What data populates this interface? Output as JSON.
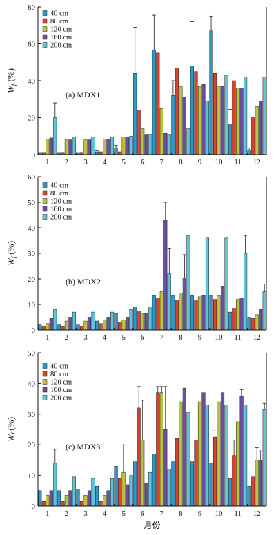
{
  "chart_data": [
    {
      "type": "bar",
      "label": "(a) MDX1",
      "ylabel": "W_f (%)",
      "ylim": [
        0,
        80
      ],
      "yticks": [
        0,
        20,
        40,
        60,
        80
      ],
      "categories": [
        "1",
        "2",
        "3",
        "4",
        "5",
        "6",
        "7",
        "8",
        "9",
        "10",
        "11",
        "12"
      ],
      "series": [
        {
          "name": "40 cm",
          "color": "#2f97c9",
          "values": [
            0.8,
            0.8,
            0.8,
            1.5,
            3.5,
            44,
            56.5,
            32,
            48,
            67,
            16.5,
            2.5
          ],
          "errors": [
            0.3,
            0.3,
            0.3,
            0.5,
            1.5,
            25,
            19,
            8,
            24,
            8,
            8,
            1
          ]
        },
        {
          "name": "80 cm",
          "color": "#d9432e",
          "values": [
            1.2,
            1.2,
            1.2,
            1.5,
            1.5,
            24,
            55,
            47,
            45,
            44,
            40,
            20
          ]
        },
        {
          "name": "120 cm",
          "color": "#b9c43c",
          "values": [
            8.5,
            8,
            8,
            8.5,
            9.5,
            14,
            25,
            37,
            37,
            37,
            36,
            26
          ]
        },
        {
          "name": "160 cm",
          "color": "#6e4c9e",
          "values": [
            9,
            8,
            8,
            8.5,
            9.5,
            11,
            11.5,
            31,
            38,
            37,
            36,
            29
          ]
        },
        {
          "name": "200 cm",
          "color": "#5fc3d9",
          "values": [
            20,
            9.5,
            9.5,
            9.5,
            10,
            11,
            11,
            14,
            29,
            43,
            42,
            42
          ],
          "errors": [
            8,
            0,
            0,
            0,
            0,
            0,
            0,
            0,
            0,
            0,
            0,
            0
          ]
        }
      ],
      "legend": "top-left"
    },
    {
      "type": "bar",
      "label": "(b) MDX2",
      "ylabel": "W_f (%)",
      "ylim": [
        0,
        60
      ],
      "yticks": [
        0,
        10,
        20,
        30,
        40,
        50,
        60
      ],
      "categories": [
        "1",
        "2",
        "3",
        "4",
        "5",
        "6",
        "7",
        "8",
        "9",
        "10",
        "11",
        "12"
      ],
      "series": [
        {
          "name": "40 cm",
          "color": "#2f97c9",
          "values": [
            2,
            2,
            2,
            3.5,
            6.5,
            9,
            13.5,
            13.5,
            13.5,
            13.5,
            7,
            5
          ]
        },
        {
          "name": "80 cm",
          "color": "#d9432e",
          "values": [
            1.5,
            1.5,
            1.5,
            2.5,
            3,
            7.5,
            12.5,
            11.5,
            11.5,
            12,
            8.5,
            4.5
          ]
        },
        {
          "name": "120 cm",
          "color": "#b9c43c",
          "values": [
            2.5,
            3.5,
            3.5,
            4,
            4,
            6.5,
            15,
            14.5,
            13,
            13.5,
            12,
            6
          ]
        },
        {
          "name": "160 cm",
          "color": "#6e4c9e",
          "values": [
            4.5,
            5,
            5,
            5,
            5,
            6.5,
            43,
            20.5,
            13.5,
            17,
            12.5,
            8
          ],
          "errors": [
            0,
            0,
            0,
            0,
            0,
            0,
            7,
            9,
            0,
            0,
            0,
            0
          ]
        },
        {
          "name": "200 cm",
          "color": "#5fc3d9",
          "values": [
            8,
            7,
            7,
            7,
            8,
            9,
            22,
            37,
            36,
            36,
            30,
            15
          ],
          "errors": [
            0,
            0,
            0,
            0,
            0,
            0,
            10,
            0,
            0,
            0,
            7,
            3
          ]
        }
      ],
      "legend": "top-left"
    },
    {
      "type": "bar",
      "label": "(c) MDX3",
      "ylabel": "W_f (%)",
      "xlabel": "月份",
      "ylim": [
        0,
        50
      ],
      "yticks": [
        0,
        10,
        20,
        30,
        40,
        50
      ],
      "categories": [
        "1",
        "2",
        "3",
        "4",
        "5",
        "6",
        "7",
        "8",
        "9",
        "10",
        "11",
        "12"
      ],
      "series": [
        {
          "name": "40 cm",
          "color": "#2f97c9",
          "values": [
            5,
            5,
            5.5,
            6.5,
            13,
            14.5,
            17,
            14.5,
            14.5,
            14,
            9,
            6.5
          ]
        },
        {
          "name": "80 cm",
          "color": "#d9432e",
          "values": [
            1.5,
            1.5,
            1.5,
            1.5,
            9,
            32,
            37,
            22,
            21.5,
            22.5,
            16.5,
            9.5
          ],
          "errors": [
            0,
            0,
            0,
            0,
            0,
            7,
            2,
            0,
            0,
            2,
            5,
            0
          ]
        },
        {
          "name": "120 cm",
          "color": "#b9c43c",
          "values": [
            3.5,
            3.5,
            3.5,
            3.5,
            11,
            21.5,
            37,
            34,
            34,
            34,
            27.5,
            15
          ],
          "errors": [
            0,
            0,
            0,
            0,
            9,
            13,
            2,
            0,
            0,
            0,
            0,
            4
          ]
        },
        {
          "name": "160 cm",
          "color": "#6e4c9e",
          "values": [
            5,
            5,
            5,
            5,
            7,
            7.5,
            25,
            38.5,
            37,
            37,
            36,
            15
          ],
          "errors": [
            0,
            0,
            0,
            0,
            0,
            0,
            14,
            0,
            0,
            0,
            2,
            3
          ]
        },
        {
          "name": "200 cm",
          "color": "#5fc3d9",
          "values": [
            14,
            9.5,
            9,
            9,
            10,
            11,
            12,
            30.5,
            33,
            33,
            33,
            31.5
          ],
          "errors": [
            4.5,
            0,
            0,
            0,
            0,
            0,
            0,
            0,
            0,
            0,
            0,
            2
          ]
        }
      ],
      "legend": "top-left"
    }
  ]
}
